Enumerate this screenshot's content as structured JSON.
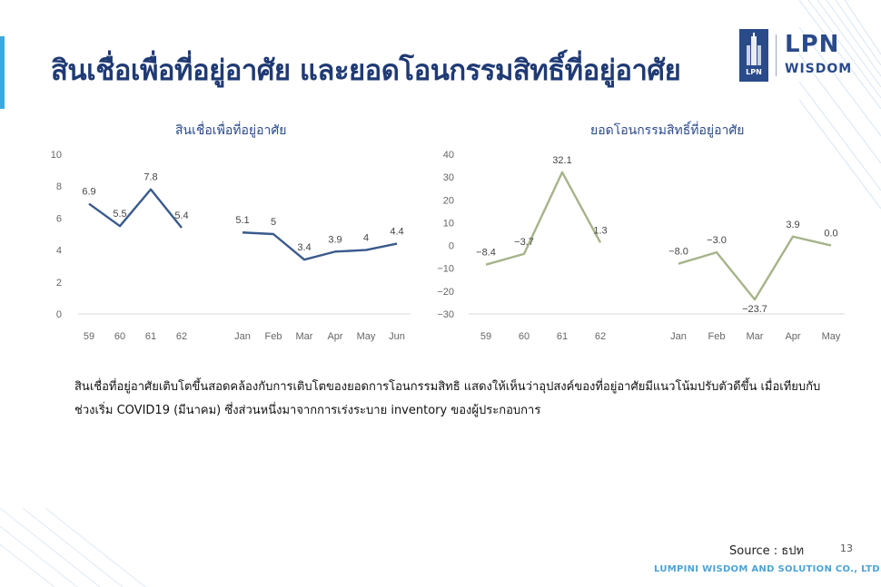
{
  "slide": {
    "title": "สินเชื่อเพื่อที่อยู่อาศัย และยอดโอนกรรมสิทธิ์ที่อยู่อาศัย",
    "logo": {
      "mark_text": "LPN",
      "brand": "LPN",
      "sub": "WISDOM"
    },
    "paragraph": "สินเชื่อที่อยู่อาศัยเติบโตขึ้นสอดคล้องกับการเติบโตของยอดการโอนกรรมสิทธิ แสดงให้เห็นว่าอุปสงค์ของที่อยู่อาศัยมีแนวโน้มปรับตัวดีขึ้น เมื่อเทียบกับช่วงเริ่ม COVID19 (มีนาคม) ซึ่งส่วนหนึ่งมาจากการเร่งระบาย inventory ของผู้ประกอบการ",
    "source": "Source : ธปท",
    "page_number": "13",
    "footer": "LUMPINI WISDOM AND SOLUTION CO., LTD.",
    "colors": {
      "title": "#1f3a74",
      "line_left": "#3a5a8c",
      "line_right": "#a6b38a",
      "accent": "#3aa9df"
    }
  },
  "chart_data": [
    {
      "type": "line",
      "title": "สินเชื่อเพื่อที่อยู่อาศัย",
      "ylim": [
        0,
        10
      ],
      "yticks": [
        "0",
        "2",
        "4",
        "6",
        "8",
        "10"
      ],
      "color": "#3a5a8c",
      "segments": [
        {
          "categories": [
            "59",
            "60",
            "61",
            "62"
          ],
          "values": [
            6.9,
            5.5,
            7.8,
            5.4
          ],
          "labels": [
            "6.9",
            "5.5",
            "7.8",
            "5.4"
          ]
        },
        {
          "categories": [
            "Jan",
            "Feb",
            "Mar",
            "Apr",
            "May",
            "Jun"
          ],
          "values": [
            5.1,
            5.0,
            3.4,
            3.9,
            4.0,
            4.4
          ],
          "labels": [
            "5.1",
            "5",
            "3.4",
            "3.9",
            "4",
            "4.4"
          ]
        }
      ]
    },
    {
      "type": "line",
      "title": "ยอดโอนกรรมสิทธิ์ที่อยู่อาศัย",
      "ylim": [
        -30,
        40
      ],
      "yticks": [
        "−30",
        "−20",
        "−10",
        "0",
        "10",
        "20",
        "30",
        "40"
      ],
      "color": "#a6b38a",
      "segments": [
        {
          "categories": [
            "59",
            "60",
            "61",
            "62"
          ],
          "values": [
            -8.4,
            -3.7,
            32.1,
            1.3
          ],
          "labels": [
            "−8.4",
            "−3.7",
            "32.1",
            "1.3"
          ]
        },
        {
          "categories": [
            "Jan",
            "Feb",
            "Mar",
            "Apr",
            "May"
          ],
          "values": [
            -8.0,
            -3.0,
            -23.7,
            3.9,
            0.0
          ],
          "labels": [
            "−8.0",
            "−3.0",
            "−23.7",
            "3.9",
            "0.0"
          ]
        }
      ]
    }
  ]
}
